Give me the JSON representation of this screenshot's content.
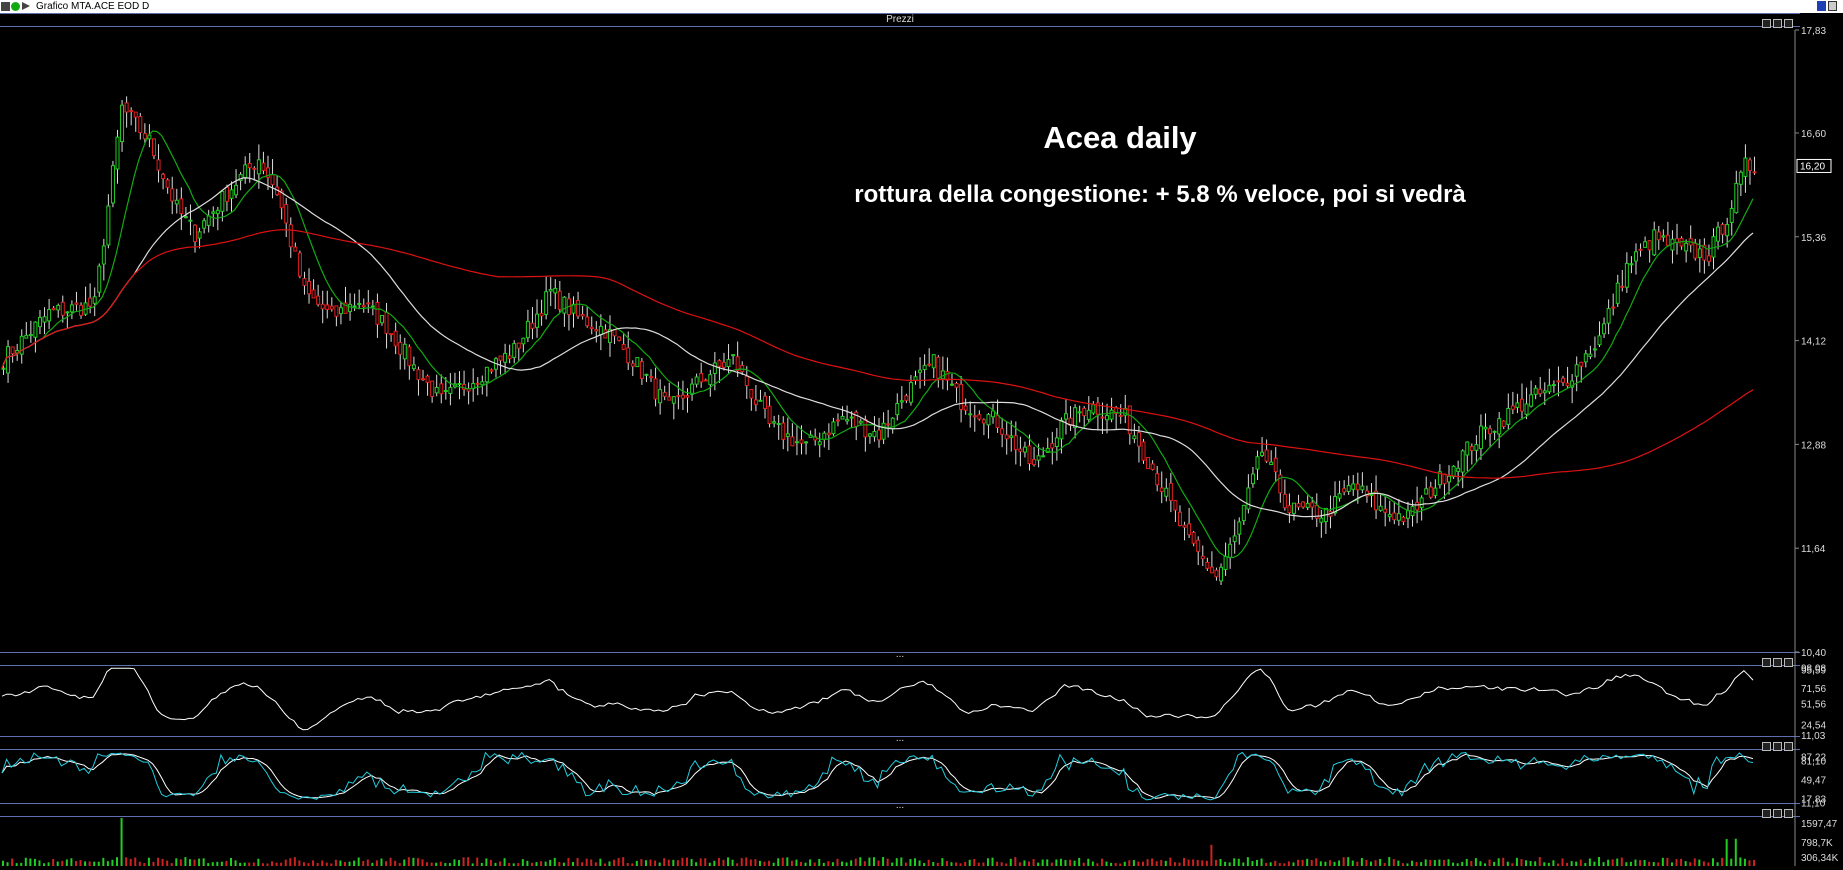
{
  "window": {
    "title": "Grafico MTA.ACE EOD D"
  },
  "panels": {
    "main_label": "Prezzi",
    "sep": "..."
  },
  "annotation": {
    "title": "Acea daily",
    "subtitle": "rottura della congestione: + 5.8 % veloce, poi si vedrà"
  },
  "colors": {
    "background": "#000000",
    "up_candle": "#22cc22",
    "down_candle": "#e02020",
    "ma_short": "#11aa11",
    "ma_mid": "#dddddd",
    "ma_long": "#dd1111",
    "rsi_line": "#ffffff",
    "stoch_k": "#22ccdd",
    "stoch_d": "#ffffff",
    "volume": "#cc2222",
    "volume_up": "#22cc22"
  },
  "chart_data": [
    {
      "type": "candlestick",
      "panel": "Prezzi",
      "y_ticks": [
        "17,83",
        "16,60",
        "15,36",
        "14,12",
        "12,88",
        "11,64",
        "10,40"
      ],
      "ylim": [
        10.4,
        17.83
      ],
      "last_price": "16,20",
      "close_anchors": [
        [
          0,
          13.9
        ],
        [
          10,
          14.45
        ],
        [
          20,
          14.55
        ],
        [
          26,
          16.9
        ],
        [
          32,
          16.5
        ],
        [
          38,
          15.7
        ],
        [
          42,
          15.4
        ],
        [
          50,
          15.95
        ],
        [
          56,
          16.3
        ],
        [
          60,
          15.9
        ],
        [
          66,
          14.7
        ],
        [
          72,
          14.4
        ],
        [
          78,
          14.6
        ],
        [
          84,
          14.3
        ],
        [
          90,
          13.8
        ],
        [
          96,
          13.4
        ],
        [
          104,
          13.7
        ],
        [
          112,
          14.0
        ],
        [
          120,
          14.7
        ],
        [
          126,
          14.4
        ],
        [
          132,
          14.25
        ],
        [
          138,
          13.9
        ],
        [
          146,
          13.3
        ],
        [
          154,
          13.7
        ],
        [
          160,
          13.9
        ],
        [
          168,
          13.1
        ],
        [
          176,
          12.85
        ],
        [
          184,
          13.2
        ],
        [
          192,
          13.0
        ],
        [
          198,
          13.5
        ],
        [
          204,
          13.85
        ],
        [
          210,
          13.4
        ],
        [
          218,
          13.15
        ],
        [
          226,
          12.6
        ],
        [
          232,
          13.1
        ],
        [
          238,
          13.35
        ],
        [
          246,
          13.2
        ],
        [
          252,
          12.6
        ],
        [
          260,
          11.7
        ],
        [
          266,
          11.3
        ],
        [
          270,
          11.75
        ],
        [
          276,
          12.8
        ],
        [
          282,
          12.1
        ],
        [
          290,
          12.05
        ],
        [
          296,
          12.4
        ],
        [
          302,
          12.1
        ],
        [
          308,
          12.0
        ],
        [
          314,
          12.4
        ],
        [
          324,
          13.0
        ],
        [
          334,
          13.4
        ],
        [
          342,
          13.6
        ],
        [
          350,
          14.15
        ],
        [
          356,
          15.0
        ],
        [
          362,
          15.35
        ],
        [
          368,
          15.2
        ],
        [
          374,
          15.15
        ],
        [
          378,
          15.6
        ],
        [
          382,
          16.2
        ]
      ]
    },
    {
      "type": "line",
      "panel": "oscillator-1",
      "y_ticks": [
        "98,08",
        "95,59",
        "71,56",
        "51,56",
        "24,54",
        "11,03"
      ],
      "ylim": [
        10,
        100
      ]
    },
    {
      "type": "line",
      "panel": "oscillator-2",
      "y_ticks": [
        "87,22",
        "81,10",
        "49,47",
        "17,83",
        "11,10"
      ],
      "ylim": [
        10,
        100
      ]
    },
    {
      "type": "bar",
      "panel": "volume",
      "y_ticks": [
        "1597,47",
        "798,7K",
        "306,34K"
      ],
      "ylim": [
        0,
        1700
      ]
    }
  ]
}
